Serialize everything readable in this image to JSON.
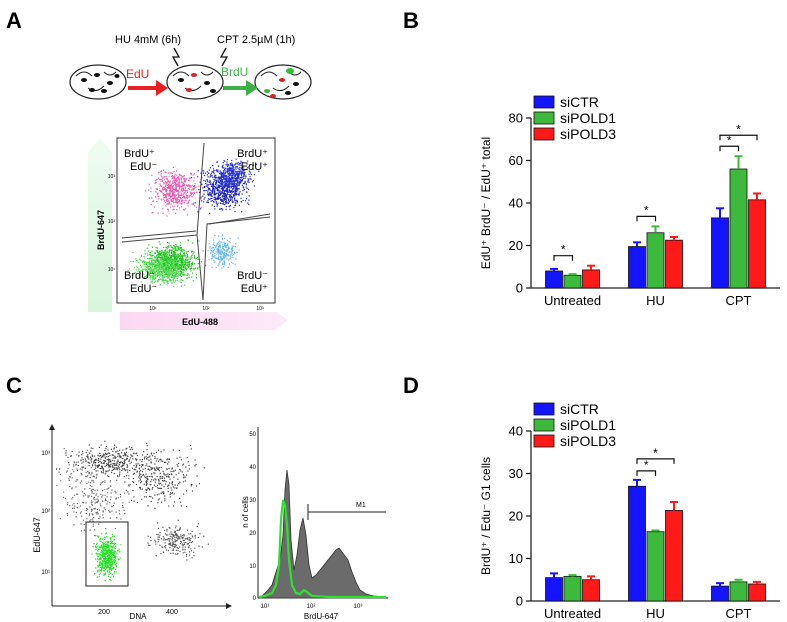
{
  "panels": {
    "A": {
      "letter": "A",
      "treatment_hu": "HU 4mM (6h)",
      "treatment_cpt": "CPT 2.5µM (1h)",
      "arrow_edu": "EdU",
      "arrow_brdu": "BrdU",
      "scatter": {
        "y_label": "BrdU-647",
        "x_label": "EdU-488",
        "quadrants": {
          "tl": [
            "BrdU⁺",
            "EdU⁻"
          ],
          "tr": [
            "BrdU⁺",
            "EdU⁺"
          ],
          "bl": [
            "BrdU⁻",
            "EdU⁻"
          ],
          "br": [
            "BrdU⁻",
            "EdU⁺"
          ]
        },
        "x_ticks": [
          "10¹",
          "10²",
          "10³"
        ],
        "y_ticks": [
          "10¹",
          "10²",
          "10³"
        ]
      }
    },
    "B": {
      "letter": "B"
    },
    "C": {
      "letter": "C",
      "scatter": {
        "y_label": "EdU-647",
        "x_label": "DNA",
        "x_ticks": [
          "200",
          "400"
        ],
        "y_ticks": [
          "10¹",
          "10²",
          "10³"
        ]
      },
      "histogram": {
        "y_label": "n of cells",
        "x_label": "BrdU-647",
        "marker": "M1",
        "x_ticks": [
          "10¹",
          "10²",
          "10³"
        ],
        "y_ticks": [
          "0",
          "10",
          "20",
          "30",
          "40",
          "50"
        ]
      }
    },
    "D": {
      "letter": "D"
    }
  },
  "colors": {
    "siCTR": "#1414ff",
    "siPOLD1": "#3dba3d",
    "siPOLD3": "#ff1a1a"
  },
  "chart_data": [
    {
      "id": "B",
      "type": "bar",
      "title": "",
      "ylabel": "EdU⁺ BrdU⁻ / EdU⁺ total",
      "xlabel": "",
      "categories": [
        "Untreated",
        "HU",
        "CPT"
      ],
      "series": [
        {
          "name": "siCTR",
          "values": [
            8,
            19.5,
            33
          ],
          "errors": [
            1,
            2,
            4.5
          ]
        },
        {
          "name": "siPOLD1",
          "values": [
            6,
            26,
            56
          ],
          "errors": [
            0.5,
            3,
            6
          ]
        },
        {
          "name": "siPOLD3",
          "values": [
            8.5,
            22.5,
            41.5
          ],
          "errors": [
            2,
            1.5,
            3
          ]
        }
      ],
      "ylim": [
        0,
        80
      ],
      "yticks": [
        0,
        20,
        40,
        60,
        80
      ],
      "legend_position": "top-left",
      "significance": [
        {
          "category": "Untreated",
          "from": "siCTR",
          "to": "siPOLD1",
          "label": "*"
        },
        {
          "category": "HU",
          "from": "siCTR",
          "to": "siPOLD1",
          "label": "*"
        },
        {
          "category": "CPT",
          "from": "siCTR",
          "to": "siPOLD1",
          "label": "*"
        },
        {
          "category": "CPT",
          "from": "siCTR",
          "to": "siPOLD3",
          "label": "*"
        }
      ]
    },
    {
      "id": "D",
      "type": "bar",
      "title": "",
      "ylabel": "BrdU⁺ / Edu⁻ G1 cells",
      "xlabel": "",
      "categories": [
        "Untreated",
        "HU",
        "CPT"
      ],
      "series": [
        {
          "name": "siCTR",
          "values": [
            5.5,
            27,
            3.5
          ],
          "errors": [
            1,
            1.5,
            0.7
          ]
        },
        {
          "name": "siPOLD1",
          "values": [
            5.8,
            16.3,
            4.5
          ],
          "errors": [
            0.3,
            0.3,
            0.5
          ]
        },
        {
          "name": "siPOLD3",
          "values": [
            5,
            21.3,
            4
          ],
          "errors": [
            0.8,
            2,
            0.5
          ]
        }
      ],
      "ylim": [
        0,
        40
      ],
      "yticks": [
        0,
        10,
        20,
        30,
        40
      ],
      "legend_position": "top-left",
      "significance": [
        {
          "category": "HU",
          "from": "siCTR",
          "to": "siPOLD1",
          "label": "*"
        },
        {
          "category": "HU",
          "from": "siCTR",
          "to": "siPOLD3",
          "label": "*"
        }
      ]
    }
  ]
}
